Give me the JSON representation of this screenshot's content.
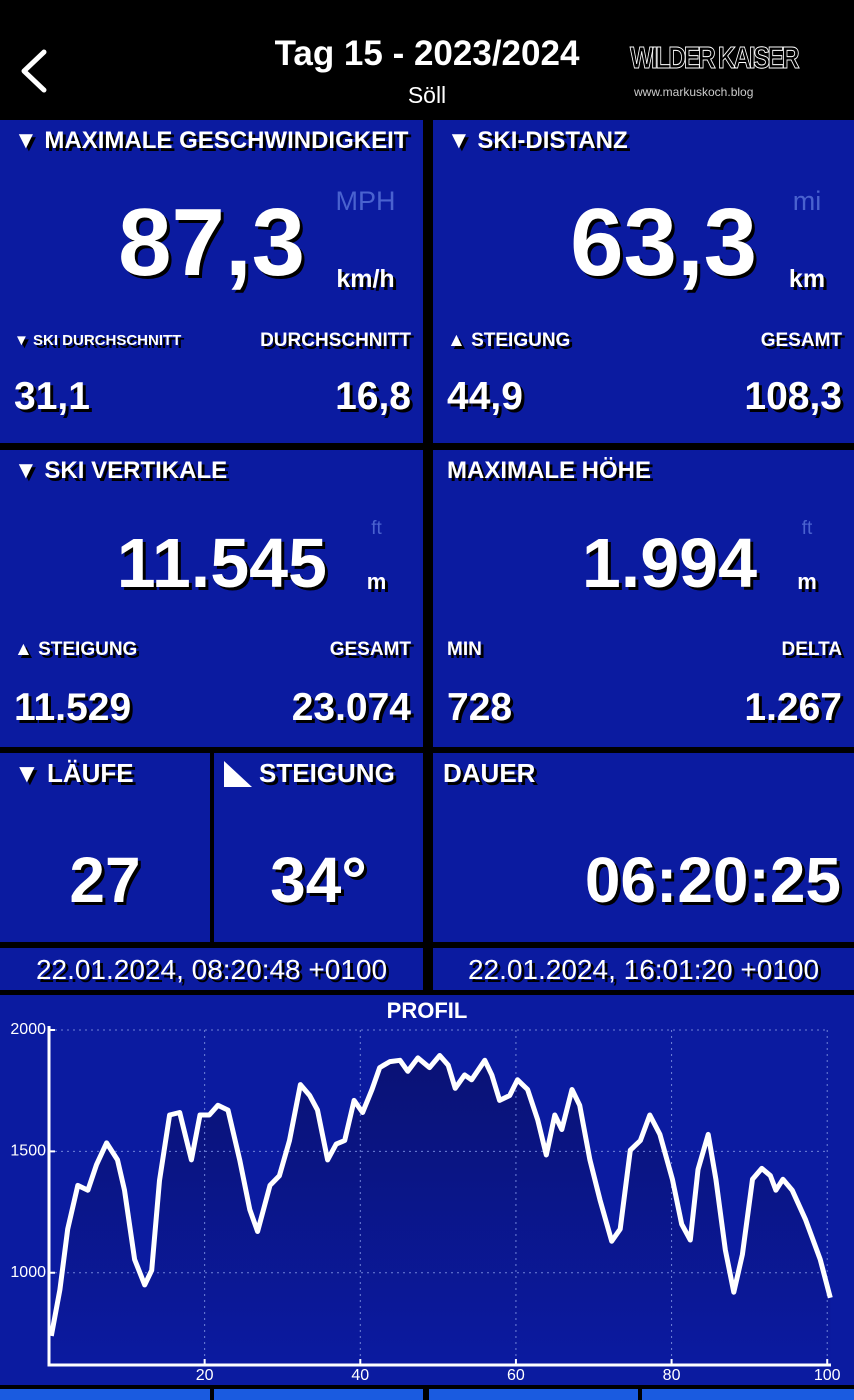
{
  "header": {
    "title": "Tag 15 - 2023/2024",
    "subtitle": "Söll",
    "logo": "WILDER KAISER",
    "logo_url": "www.markuskoch.blog"
  },
  "speed": {
    "title": "▼ MAXIMALE GESCHWINDIGKEIT",
    "value": "87,3",
    "unit_alt": "MPH",
    "unit": "km/h",
    "stats": [
      {
        "label": "▼ SKI DURCHSCHNITT",
        "value": "31,1"
      },
      {
        "label": "DURCHSCHNITT",
        "value": "16,8"
      }
    ]
  },
  "distance": {
    "title": "▼ SKI-DISTANZ",
    "value": "63,3",
    "unit_alt": "mi",
    "unit": "km",
    "stats": [
      {
        "label": "▲ STEIGUNG",
        "value": "44,9"
      },
      {
        "label": "GESAMT",
        "value": "108,3"
      }
    ]
  },
  "vertical": {
    "title": "▼ SKI VERTIKALE",
    "value": "11.545",
    "unit_alt": "ft",
    "unit": "m",
    "stats": [
      {
        "label": "▲ STEIGUNG",
        "value": "11.529"
      },
      {
        "label": "GESAMT",
        "value": "23.074"
      }
    ]
  },
  "altitude": {
    "title": "MAXIMALE HÖHE",
    "value": "1.994",
    "unit_alt": "ft",
    "unit": "m",
    "stats": [
      {
        "label": "MIN",
        "value": "728"
      },
      {
        "label": "DELTA",
        "value": "1.267"
      }
    ]
  },
  "runs": {
    "title": "▼ LÄUFE",
    "value": "27"
  },
  "slope": {
    "title": "STEIGUNG",
    "value": "34°"
  },
  "duration": {
    "title": "DAUER",
    "value": "06:20:25"
  },
  "start": "22.01.2024, 08:20:48 +0100",
  "end": "22.01.2024, 16:01:20 +0100",
  "chart_data": {
    "type": "line",
    "title": "PROFIL",
    "color": "#ffffff",
    "x": [
      0.3,
      1.4,
      2.4,
      3.7,
      5,
      6.1,
      7.4,
      8.8,
      9.7,
      11,
      12.3,
      13.2,
      14.2,
      15.5,
      16.8,
      18.3,
      19.4,
      20.6,
      21.7,
      23,
      24.5,
      25.8,
      26.8,
      28.4,
      29.6,
      30.9,
      32.3,
      33.5,
      34.5,
      35.8,
      36.9,
      38,
      39.2,
      40.3,
      41.5,
      42.5,
      43.8,
      45.1,
      46.1,
      47.4,
      48.9,
      50.2,
      51.3,
      52.2,
      53.4,
      54.3,
      56,
      56.9,
      57.9,
      59.2,
      60.2,
      61.5,
      62.8,
      63.9,
      65,
      65.9,
      67.2,
      68.2,
      69.5,
      70.8,
      72.3,
      73.4,
      74.7,
      76,
      77.2,
      78.5,
      80.1,
      81.3,
      82.4,
      83.4,
      84.7,
      85.7,
      86.9,
      88,
      89.1,
      90.4,
      91.6,
      92.7,
      93.4,
      94.3,
      95.5,
      97.2,
      99.1,
      100.4
    ],
    "values": [
      740,
      930,
      1180,
      1360,
      1340,
      1445,
      1535,
      1465,
      1340,
      1055,
      950,
      1010,
      1380,
      1650,
      1660,
      1465,
      1650,
      1650,
      1690,
      1670,
      1465,
      1260,
      1170,
      1360,
      1400,
      1545,
      1775,
      1730,
      1670,
      1465,
      1530,
      1545,
      1710,
      1660,
      1755,
      1845,
      1870,
      1875,
      1830,
      1885,
      1845,
      1895,
      1855,
      1760,
      1815,
      1795,
      1875,
      1815,
      1710,
      1730,
      1795,
      1755,
      1630,
      1485,
      1650,
      1590,
      1755,
      1690,
      1465,
      1300,
      1130,
      1180,
      1505,
      1545,
      1650,
      1570,
      1385,
      1200,
      1135,
      1425,
      1570,
      1385,
      1095,
      920,
      1075,
      1385,
      1430,
      1400,
      1340,
      1385,
      1340,
      1220,
      1055,
      897
    ],
    "xlim": [
      0,
      101
    ],
    "ylim": [
      620,
      2000
    ],
    "xticks": [
      20,
      40,
      60,
      80,
      100
    ],
    "yticks": [
      1000,
      1500,
      2000
    ],
    "grid": true
  }
}
